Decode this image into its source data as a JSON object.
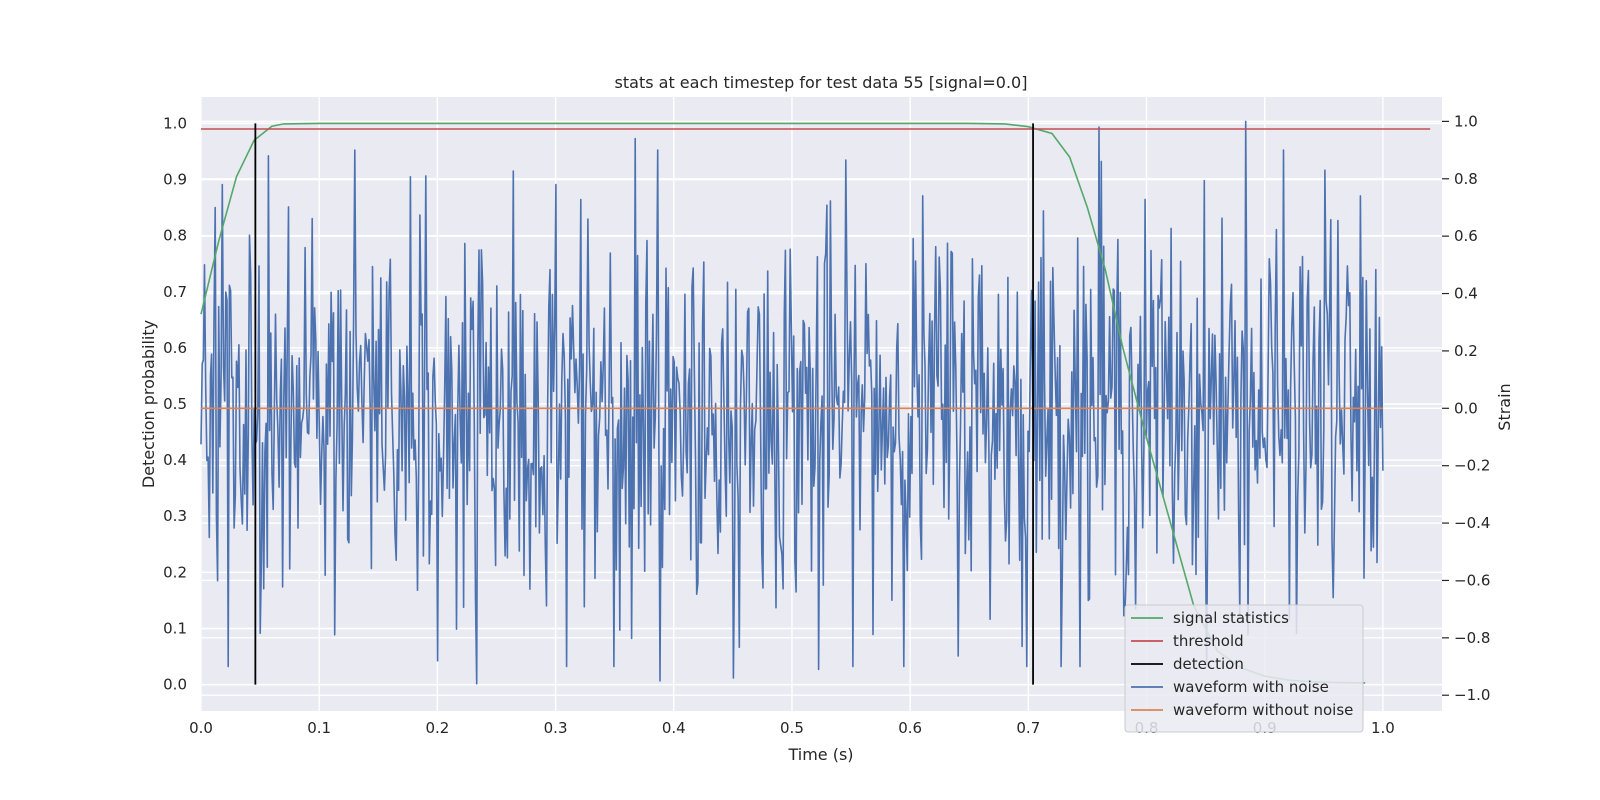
{
  "chart_data": {
    "type": "line",
    "title": "stats at each timestep for test data 55 [signal=0.0]",
    "xlabel": "Time (s)",
    "ylabel": "Detection probability",
    "y2label": "Strain",
    "xlim": [
      0.0,
      1.05
    ],
    "ylim": [
      -0.047,
      1.047
    ],
    "y2lim": [
      -1.055,
      1.085
    ],
    "x_ticks": [
      0.0,
      0.1,
      0.2,
      0.3,
      0.4,
      0.5,
      0.6,
      0.7,
      0.8,
      0.9,
      1.0
    ],
    "x_tick_labels": [
      "0.0",
      "0.1",
      "0.2",
      "0.3",
      "0.4",
      "0.5",
      "0.6",
      "0.7",
      "0.8",
      "0.9",
      "1.0"
    ],
    "y_ticks": [
      0.0,
      0.1,
      0.2,
      0.3,
      0.4,
      0.5,
      0.6,
      0.7,
      0.8,
      0.9,
      1.0
    ],
    "y_tick_labels": [
      "0.0",
      "0.1",
      "0.2",
      "0.3",
      "0.4",
      "0.5",
      "0.6",
      "0.7",
      "0.8",
      "0.9",
      "1.0"
    ],
    "y2_ticks": [
      -1.0,
      -0.8,
      -0.6,
      -0.4,
      -0.2,
      0.0,
      0.2,
      0.4,
      0.6,
      0.8,
      1.0
    ],
    "y2_tick_labels": [
      "−1.0",
      "−0.8",
      "−0.6",
      "−0.4",
      "−0.2",
      "0.0",
      "0.2",
      "0.4",
      "0.6",
      "0.8",
      "1.0"
    ],
    "grid": true,
    "background": "#eaeaf2",
    "legend_position": "lower-right",
    "legend": [
      {
        "label": "signal statistics",
        "color": "#55a868"
      },
      {
        "label": "threshold",
        "color": "#c44e52"
      },
      {
        "label": "detection",
        "color": "#000000"
      },
      {
        "label": "waveform with noise",
        "color": "#4c72b0"
      },
      {
        "label": "waveform without noise",
        "color": "#dd8452"
      }
    ],
    "series": [
      {
        "name": "signal statistics",
        "axis": "left",
        "color": "#55a868",
        "x": [
          0.0,
          0.015,
          0.03,
          0.045,
          0.06,
          0.07,
          0.1,
          0.2,
          0.3,
          0.4,
          0.5,
          0.6,
          0.65,
          0.68,
          0.7,
          0.72,
          0.735,
          0.75,
          0.765,
          0.78,
          0.8,
          0.82,
          0.84,
          0.86,
          0.88,
          0.9,
          0.92,
          0.94,
          0.96,
          0.985
        ],
        "values": [
          0.66,
          0.79,
          0.905,
          0.97,
          0.995,
          0.999,
          1.0,
          1.0,
          1.0,
          1.0,
          1.0,
          1.0,
          1.0,
          0.999,
          0.994,
          0.982,
          0.94,
          0.85,
          0.74,
          0.6,
          0.44,
          0.29,
          0.14,
          0.06,
          0.03,
          0.015,
          0.008,
          0.005,
          0.004,
          0.003
        ]
      },
      {
        "name": "threshold",
        "axis": "left",
        "color": "#c44e52",
        "x": [
          0.0,
          1.04
        ],
        "values": [
          0.99,
          0.99
        ]
      },
      {
        "name": "waveform without noise",
        "axis": "right",
        "color": "#dd8452",
        "x": [
          0.0,
          1.0
        ],
        "values": [
          0.0,
          0.0
        ]
      }
    ],
    "detections": [
      {
        "x": 0.046,
        "y_range": [
          0.0,
          1.0
        ]
      },
      {
        "x": 0.704,
        "y_range": [
          0.0,
          1.0
        ]
      }
    ],
    "noisy_waveform": {
      "name": "waveform with noise",
      "axis": "right",
      "color": "#4c72b0",
      "x_range": [
        0.0,
        1.0
      ],
      "num_points": 1000,
      "std": 0.33,
      "peaks": [
        {
          "x": 0.003,
          "y": 0.5
        },
        {
          "x": 0.007,
          "y": -0.45
        },
        {
          "x": 0.012,
          "y": 0.7
        },
        {
          "x": 0.018,
          "y": 0.78
        },
        {
          "x": 0.057,
          "y": 0.88
        },
        {
          "x": 0.19,
          "y": 0.81
        },
        {
          "x": 0.2,
          "y": -0.88
        },
        {
          "x": 0.233,
          "y": -0.96
        },
        {
          "x": 0.3,
          "y": 0.78
        },
        {
          "x": 0.367,
          "y": 0.94
        },
        {
          "x": 0.388,
          "y": -0.95
        },
        {
          "x": 0.45,
          "y": -0.94
        },
        {
          "x": 0.523,
          "y": -0.91
        },
        {
          "x": 0.695,
          "y": -0.83
        },
        {
          "x": 0.76,
          "y": 0.98
        },
        {
          "x": 0.884,
          "y": 1.0
        },
        {
          "x": 0.951,
          "y": 0.83
        }
      ]
    }
  }
}
